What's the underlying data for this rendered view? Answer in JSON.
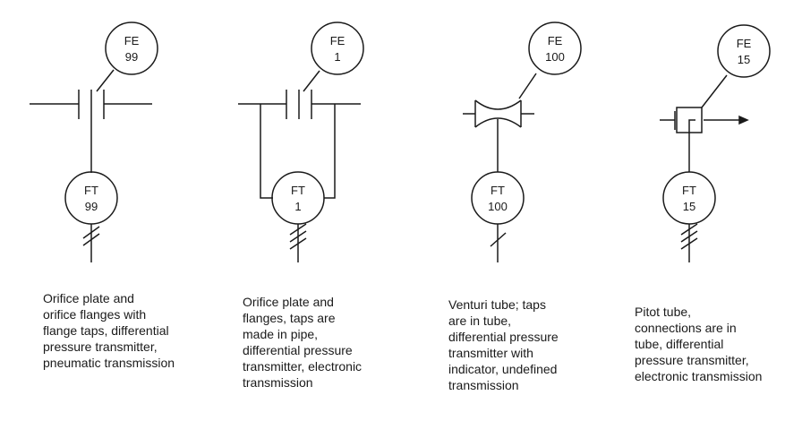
{
  "symbols": [
    {
      "element": {
        "tag": "FE",
        "number": "99"
      },
      "transmitter": {
        "tag": "FT",
        "number": "99"
      },
      "caption_lines": [
        "Orifice plate and",
        "orifice flanges with",
        "flange taps, differential",
        "pressure transmitter,",
        "pneumatic transmission"
      ]
    },
    {
      "element": {
        "tag": "FE",
        "number": "1"
      },
      "transmitter": {
        "tag": "FT",
        "number": "1"
      },
      "caption_lines": [
        "Orifice plate and",
        "flanges, taps are",
        "made in pipe,",
        "differential pressure",
        "transmitter, electronic",
        "transmission"
      ]
    },
    {
      "element": {
        "tag": "FE",
        "number": "100"
      },
      "transmitter": {
        "tag": "FT",
        "number": "100"
      },
      "caption_lines": [
        "Venturi tube; taps",
        "are in tube,",
        "differential pressure",
        "transmitter with",
        "indicator, undefined",
        "transmission"
      ]
    },
    {
      "element": {
        "tag": "FE",
        "number": "15"
      },
      "transmitter": {
        "tag": "FT",
        "number": "15"
      },
      "caption_lines": [
        "Pitot tube,",
        "connections are in",
        "tube, differential",
        "pressure transmitter,",
        "electronic transmission"
      ]
    }
  ]
}
